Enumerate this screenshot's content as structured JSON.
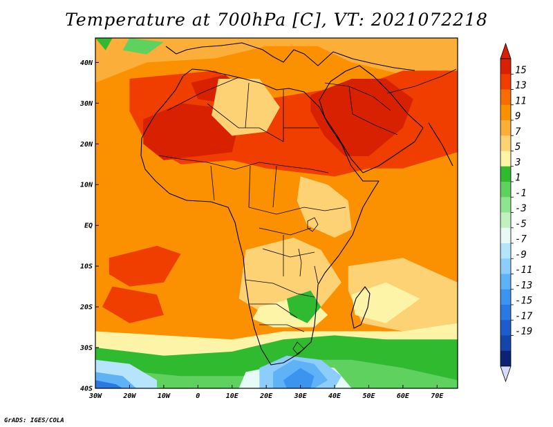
{
  "title": "Temperature at 700hPa [C], VT: 2021072218",
  "credit": "GrADS: IGES/COLA",
  "map": {
    "lon_range": [
      -30,
      76
    ],
    "lat_range": [
      -40,
      46
    ],
    "x_ticks": [
      {
        "value": -30,
        "label": "30W"
      },
      {
        "value": -20,
        "label": "20W"
      },
      {
        "value": -10,
        "label": "10W"
      },
      {
        "value": 0,
        "label": "0"
      },
      {
        "value": 10,
        "label": "10E"
      },
      {
        "value": 20,
        "label": "20E"
      },
      {
        "value": 30,
        "label": "30E"
      },
      {
        "value": 40,
        "label": "40E"
      },
      {
        "value": 50,
        "label": "50E"
      },
      {
        "value": 60,
        "label": "60E"
      },
      {
        "value": 70,
        "label": "70E"
      }
    ],
    "y_ticks": [
      {
        "value": 40,
        "label": "40N"
      },
      {
        "value": 30,
        "label": "30N"
      },
      {
        "value": 20,
        "label": "20N"
      },
      {
        "value": 10,
        "label": "10N"
      },
      {
        "value": 0,
        "label": "EQ"
      },
      {
        "value": -10,
        "label": "10S"
      },
      {
        "value": -20,
        "label": "20S"
      },
      {
        "value": -30,
        "label": "30S"
      },
      {
        "value": -40,
        "label": "40S"
      }
    ]
  },
  "colorbar": {
    "labels": [
      "15",
      "13",
      "11",
      "9",
      "7",
      "5",
      "3",
      "1",
      "-1",
      "-3",
      "-5",
      "-7",
      "-9",
      "-11",
      "-13",
      "-15",
      "-17",
      "-19"
    ],
    "colors": [
      "#d82100",
      "#ef3e00",
      "#f76e00",
      "#fb9000",
      "#fbae3a",
      "#fdd274",
      "#fef4a8",
      "#2fba2f",
      "#5fd15f",
      "#8fe58f",
      "#c0f2c0",
      "#e6fbf6",
      "#b6e4fc",
      "#8ccdfb",
      "#60b2f7",
      "#3d94ef",
      "#2a78e0",
      "#1f5bcb",
      "#1645aa",
      "#0c2374"
    ],
    "over_color": "#d82100",
    "under_color": "#d8dcfb"
  },
  "field": {
    "base_color": "#fb9000",
    "regions": [
      {
        "color": "#fbae3a",
        "points": [
          [
            -30,
            46
          ],
          [
            76,
            46
          ],
          [
            76,
            36
          ],
          [
            60,
            37
          ],
          [
            45,
            40
          ],
          [
            35,
            44
          ],
          [
            20,
            44
          ],
          [
            5,
            41
          ],
          [
            -15,
            40
          ],
          [
            -30,
            35
          ]
        ]
      },
      {
        "color": "#ef3e00",
        "points": [
          [
            -20,
            36
          ],
          [
            5,
            38
          ],
          [
            20,
            31
          ],
          [
            35,
            33
          ],
          [
            50,
            35
          ],
          [
            60,
            38
          ],
          [
            76,
            38
          ],
          [
            76,
            18
          ],
          [
            60,
            14
          ],
          [
            50,
            14
          ],
          [
            40,
            12
          ],
          [
            20,
            14
          ],
          [
            10,
            16
          ],
          [
            -5,
            15
          ],
          [
            -15,
            20
          ],
          [
            -20,
            28
          ]
        ]
      },
      {
        "color": "#d82100",
        "points": [
          [
            -16,
            26
          ],
          [
            -5,
            30
          ],
          [
            5,
            29
          ],
          [
            12,
            25
          ],
          [
            10,
            18
          ],
          [
            0,
            17
          ],
          [
            -10,
            16
          ],
          [
            -16,
            20
          ]
        ]
      },
      {
        "color": "#d82100",
        "points": [
          [
            33,
            32
          ],
          [
            45,
            36
          ],
          [
            55,
            36
          ],
          [
            63,
            31
          ],
          [
            60,
            24
          ],
          [
            50,
            17
          ],
          [
            43,
            17
          ],
          [
            37,
            22
          ],
          [
            33,
            28
          ]
        ]
      },
      {
        "color": "#d82100",
        "points": [
          [
            -2,
            35
          ],
          [
            8,
            37
          ],
          [
            14,
            33
          ],
          [
            8,
            30
          ],
          [
            0,
            31
          ]
        ]
      },
      {
        "color": "#fdd274",
        "points": [
          [
            6,
            36
          ],
          [
            18,
            36
          ],
          [
            24,
            29
          ],
          [
            20,
            23
          ],
          [
            10,
            22
          ],
          [
            4,
            27
          ]
        ]
      },
      {
        "color": "#fdd274",
        "points": [
          [
            30,
            12
          ],
          [
            38,
            10
          ],
          [
            44,
            6
          ],
          [
            45,
            -1
          ],
          [
            40,
            -3
          ],
          [
            32,
            0
          ],
          [
            29,
            6
          ]
        ]
      },
      {
        "color": "#ef3e00",
        "points": [
          [
            -26,
            -8
          ],
          [
            -12,
            -5
          ],
          [
            -5,
            -7
          ],
          [
            -10,
            -14
          ],
          [
            -20,
            -15
          ],
          [
            -26,
            -12
          ]
        ]
      },
      {
        "color": "#ef3e00",
        "points": [
          [
            -25,
            -15
          ],
          [
            -12,
            -17
          ],
          [
            -10,
            -22
          ],
          [
            -20,
            -24
          ],
          [
            -28,
            -20
          ]
        ]
      },
      {
        "color": "#fdd274",
        "points": [
          [
            14,
            -6
          ],
          [
            28,
            -3
          ],
          [
            36,
            -6
          ],
          [
            42,
            -14
          ],
          [
            36,
            -20
          ],
          [
            20,
            -22
          ],
          [
            12,
            -18
          ]
        ]
      },
      {
        "color": "#fef4a8",
        "points": [
          [
            18,
            -20
          ],
          [
            32,
            -17
          ],
          [
            38,
            -22
          ],
          [
            34,
            -25
          ],
          [
            22,
            -25
          ],
          [
            16,
            -23
          ]
        ]
      },
      {
        "color": "#fdd274",
        "points": [
          [
            44,
            -10
          ],
          [
            60,
            -8
          ],
          [
            76,
            -14
          ],
          [
            76,
            -26
          ],
          [
            60,
            -26
          ],
          [
            48,
            -24
          ],
          [
            44,
            -16
          ]
        ]
      },
      {
        "color": "#fef4a8",
        "points": [
          [
            45,
            -17
          ],
          [
            55,
            -14
          ],
          [
            65,
            -18
          ],
          [
            55,
            -24
          ],
          [
            46,
            -22
          ]
        ]
      },
      {
        "color": "#fef4a8",
        "points": [
          [
            -30,
            -26
          ],
          [
            -10,
            -27
          ],
          [
            10,
            -28
          ],
          [
            25,
            -26
          ],
          [
            40,
            -26
          ],
          [
            60,
            -26
          ],
          [
            76,
            -24
          ],
          [
            76,
            -40
          ],
          [
            -30,
            -40
          ]
        ]
      },
      {
        "color": "#2fba2f",
        "points": [
          [
            -30,
            -30
          ],
          [
            -10,
            -32
          ],
          [
            10,
            -31
          ],
          [
            25,
            -28
          ],
          [
            40,
            -27
          ],
          [
            55,
            -28
          ],
          [
            76,
            -28
          ],
          [
            76,
            -40
          ],
          [
            -30,
            -40
          ]
        ]
      },
      {
        "color": "#5fd15f",
        "points": [
          [
            -30,
            -35
          ],
          [
            -5,
            -37
          ],
          [
            15,
            -37
          ],
          [
            30,
            -33
          ],
          [
            45,
            -33
          ],
          [
            60,
            -35
          ],
          [
            76,
            -38
          ],
          [
            76,
            -40
          ],
          [
            -30,
            -40
          ]
        ]
      },
      {
        "color": "#8fe58f",
        "points": [
          [
            -30,
            -37
          ],
          [
            -10,
            -40
          ],
          [
            -30,
            -40
          ]
        ]
      },
      {
        "color": "#e6fbf6",
        "points": [
          [
            14,
            -36
          ],
          [
            26,
            -34
          ],
          [
            40,
            -35
          ],
          [
            45,
            -40
          ],
          [
            12,
            -40
          ]
        ]
      },
      {
        "color": "#b6e4fc",
        "points": [
          [
            -30,
            -33
          ],
          [
            -20,
            -34
          ],
          [
            -12,
            -38
          ],
          [
            -12,
            -40
          ],
          [
            -30,
            -40
          ]
        ]
      },
      {
        "color": "#8ccdfb",
        "points": [
          [
            18,
            -35
          ],
          [
            26,
            -32
          ],
          [
            36,
            -33
          ],
          [
            42,
            -37
          ],
          [
            40,
            -40
          ],
          [
            18,
            -40
          ]
        ]
      },
      {
        "color": "#60b2f7",
        "points": [
          [
            22,
            -36
          ],
          [
            28,
            -33
          ],
          [
            34,
            -34
          ],
          [
            38,
            -38
          ],
          [
            34,
            -40
          ],
          [
            22,
            -40
          ]
        ]
      },
      {
        "color": "#60b2f7",
        "points": [
          [
            -30,
            -36
          ],
          [
            -22,
            -37
          ],
          [
            -18,
            -40
          ],
          [
            -30,
            -40
          ]
        ]
      },
      {
        "color": "#3d94ef",
        "points": [
          [
            25,
            -38
          ],
          [
            30,
            -35
          ],
          [
            34,
            -37
          ],
          [
            33,
            -40
          ],
          [
            26,
            -40
          ]
        ]
      },
      {
        "color": "#2a78e0",
        "points": [
          [
            -30,
            -38
          ],
          [
            -24,
            -39
          ],
          [
            -22,
            -40
          ],
          [
            -30,
            -40
          ]
        ]
      },
      {
        "color": "#2fba2f",
        "points": [
          [
            26,
            -18
          ],
          [
            33,
            -16
          ],
          [
            36,
            -20
          ],
          [
            32,
            -24
          ],
          [
            27,
            -22
          ]
        ]
      },
      {
        "color": "#5fd15f",
        "points": [
          [
            -20,
            46
          ],
          [
            -10,
            45
          ],
          [
            -15,
            42
          ],
          [
            -22,
            43
          ]
        ]
      },
      {
        "color": "#2fba2f",
        "points": [
          [
            -30,
            46
          ],
          [
            -25,
            46
          ],
          [
            -27,
            43
          ]
        ]
      }
    ]
  }
}
